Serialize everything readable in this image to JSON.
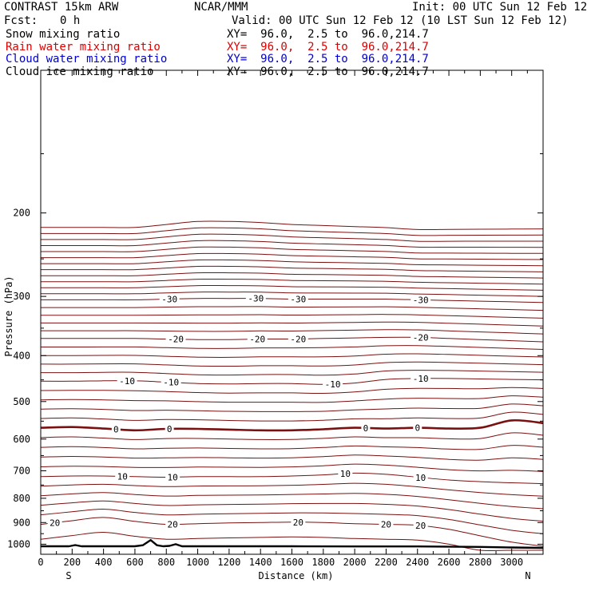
{
  "header": {
    "model": "CONTRAST 15km ARW",
    "center": "NCAR/MMM",
    "init": "Init: 00 UTC Sun 12 Feb 12",
    "fcst_label": "Fcst:",
    "fcst_value": "0 h",
    "valid": "Valid: 00 UTC Sun 12 Feb 12 (10 LST Sun 12 Feb 12)"
  },
  "fields": [
    {
      "name": "Snow mixing ratio",
      "xy": "XY=  96.0,  2.5 to  96.0,214.7",
      "color": "#000000"
    },
    {
      "name": "Rain water mixing ratio",
      "xy": "XY=  96.0,  2.5 to  96.0,214.7",
      "color": "#dd0000"
    },
    {
      "name": "Cloud water mixing ratio",
      "xy": "XY=  96.0,  2.5 to  96.0,214.7",
      "color": "#0000cc"
    },
    {
      "name": "Cloud ice mixing ratio",
      "xy": "XY=  96.0,  2.5 to  96.0,214.7",
      "color": "#000000"
    }
  ],
  "chart_data": {
    "type": "line",
    "xlabel": "Distance (km)",
    "ylabel": "Pressure (hPa)",
    "xlim": [
      0,
      3200
    ],
    "ylim": [
      1050,
      100
    ],
    "y_scale": "log",
    "x_ticks": [
      0,
      200,
      400,
      600,
      800,
      1000,
      1200,
      1400,
      1600,
      1800,
      2000,
      2200,
      2400,
      2600,
      2800,
      3000
    ],
    "y_ticks": [
      200,
      300,
      400,
      500,
      600,
      700,
      800,
      900,
      1000
    ],
    "left_endpoint": "S",
    "right_endpoint": "N",
    "line_color": "#7a1010",
    "terrain_color": "#000000",
    "contour_x": [
      0,
      200,
      400,
      600,
      800,
      1000,
      1200,
      1400,
      1600,
      1800,
      2000,
      2200,
      2400,
      2600,
      2800,
      3000,
      3200
    ],
    "isotherms": [
      {
        "label": "-30",
        "bold": false,
        "label_x": [
          820,
          1370,
          1640,
          2420
        ],
        "p": [
          305,
          305,
          305,
          305,
          304,
          303,
          303,
          303,
          304,
          304,
          304,
          304,
          305,
          306,
          307,
          308,
          309
        ]
      },
      {
        "label": "-20",
        "bold": false,
        "label_x": [
          860,
          1380,
          1640,
          2420
        ],
        "p": [
          368,
          368,
          368,
          368,
          369,
          370,
          370,
          369,
          369,
          368,
          367,
          366,
          366,
          368,
          370,
          372,
          374
        ]
      },
      {
        "label": "-10",
        "bold": false,
        "label_x": [
          550,
          830,
          1860,
          2420
        ],
        "p": [
          453,
          453,
          452,
          452,
          455,
          458,
          459,
          458,
          458,
          460,
          457,
          449,
          447,
          447,
          448,
          449,
          450
        ]
      },
      {
        "label": "0",
        "bold": true,
        "label_x": [
          480,
          820,
          2070,
          2400
        ],
        "p": [
          568,
          566,
          570,
          575,
          571,
          571,
          573,
          575,
          575,
          572,
          568,
          570,
          568,
          570,
          568,
          548,
          555
        ]
      },
      {
        "label": "10",
        "bold": false,
        "label_x": [
          520,
          840,
          1940,
          2420
        ],
        "p": [
          720,
          718,
          718,
          720,
          722,
          720,
          720,
          720,
          718,
          714,
          708,
          712,
          722,
          732,
          738,
          742,
          745
        ]
      },
      {
        "label": "20",
        "bold": false,
        "label_x": [
          90,
          840,
          1640,
          2200,
          2420
        ],
        "p": [
          908,
          892,
          878,
          895,
          908,
          905,
          902,
          900,
          898,
          900,
          905,
          908,
          912,
          930,
          960,
          990,
          1010
        ]
      }
    ],
    "terrain": {
      "x": [
        0,
        180,
        220,
        260,
        600,
        650,
        700,
        740,
        780,
        820,
        860,
        900,
        1200,
        1600,
        2000,
        2400,
        2800,
        3000,
        3200
      ],
      "p": [
        1010,
        1010,
        1004,
        1010,
        1010,
        1005,
        980,
        1005,
        1010,
        1008,
        1000,
        1010,
        1010,
        1010,
        1011,
        1011,
        1013,
        1016,
        1018
      ]
    }
  }
}
